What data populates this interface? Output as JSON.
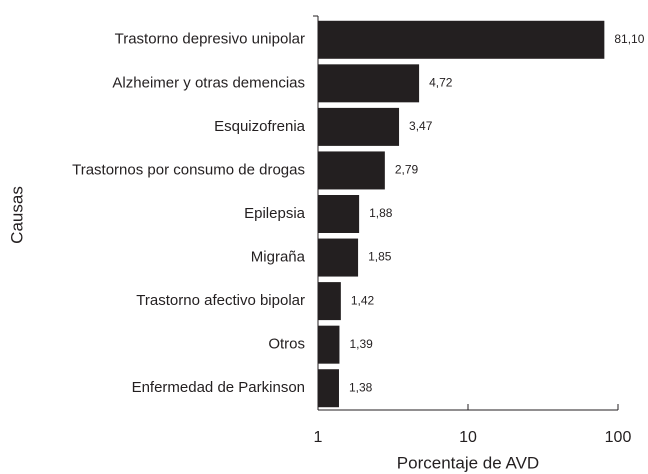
{
  "chart_data": {
    "type": "bar",
    "orientation": "horizontal",
    "log_x": true,
    "categories": [
      "Trastorno depresivo unipolar",
      "Alzheimer y otras demencias",
      "Esquizofrenia",
      "Trastornos por consumo de drogas",
      "Epilepsia",
      "Migraña",
      "Trastorno afectivo bipolar",
      "Otros",
      "Enfermedad de Parkinson"
    ],
    "values": [
      81.1,
      4.72,
      3.47,
      2.79,
      1.88,
      1.85,
      1.42,
      1.39,
      1.38
    ],
    "value_labels": [
      "81,10",
      "4,72",
      "3,47",
      "2,79",
      "1,88",
      "1,85",
      "1,42",
      "1,39",
      "1,38"
    ],
    "color": "#231f20",
    "xlim": [
      1,
      100
    ],
    "xticks": [
      1,
      10,
      100
    ],
    "x_label": "Porcentaje de AVD",
    "y_label": "Causas"
  }
}
